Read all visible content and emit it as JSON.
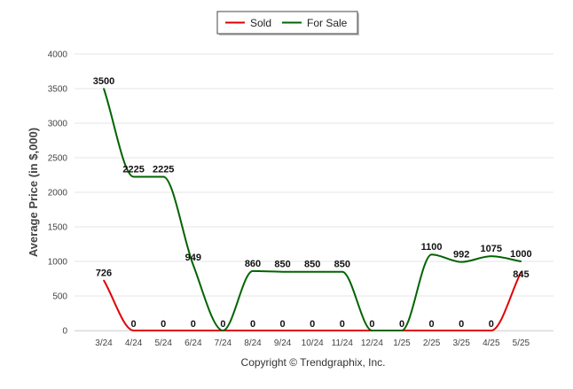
{
  "chart_data": {
    "type": "line",
    "title": "",
    "xlabel": "",
    "ylabel": "Average Price (in $,000)",
    "categories": [
      "3/24",
      "4/24",
      "5/24",
      "6/24",
      "7/24",
      "8/24",
      "9/24",
      "10/24",
      "11/24",
      "12/24",
      "1/25",
      "2/25",
      "3/25",
      "4/25",
      "5/25"
    ],
    "y_ticks": [
      "0",
      "500",
      "1000",
      "1500",
      "2000",
      "2500",
      "3000",
      "3500",
      "4000"
    ],
    "ylim": [
      0,
      4000
    ],
    "grid": true,
    "legend_position": "top-center",
    "series": [
      {
        "name": "Sold",
        "color": "#e00000",
        "values": [
          726,
          0,
          0,
          0,
          0,
          0,
          0,
          0,
          0,
          0,
          0,
          0,
          0,
          0,
          845
        ],
        "labels": [
          "726",
          "0",
          "0",
          "0",
          "0",
          "0",
          "0",
          "0",
          "0",
          "0",
          "0",
          "0",
          "0",
          "0",
          "845"
        ]
      },
      {
        "name": "For Sale",
        "color": "#006400",
        "values": [
          3500,
          2225,
          2225,
          949,
          0,
          860,
          850,
          850,
          850,
          0,
          0,
          1100,
          992,
          1075,
          1000
        ],
        "labels": [
          "3500",
          "2225",
          "2225",
          "949",
          "0",
          "860",
          "850",
          "850",
          "850",
          "0",
          "0",
          "1100",
          "992",
          "1075",
          "1000"
        ]
      }
    ],
    "footer": "Copyright © Trendgraphix, Inc."
  }
}
